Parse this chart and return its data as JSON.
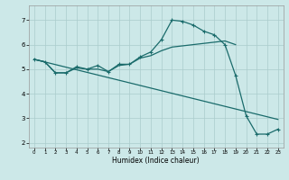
{
  "xlabel": "Humidex (Indice chaleur)",
  "bg_color": "#cce8e8",
  "grid_color": "#aacccc",
  "line_color": "#1a6b6b",
  "xlim": [
    -0.5,
    23.5
  ],
  "ylim": [
    1.8,
    7.6
  ],
  "yticks": [
    2,
    3,
    4,
    5,
    6,
    7
  ],
  "xticks": [
    0,
    1,
    2,
    3,
    4,
    5,
    6,
    7,
    8,
    9,
    10,
    11,
    12,
    13,
    14,
    15,
    16,
    17,
    18,
    19,
    20,
    21,
    22,
    23
  ],
  "line1_x": [
    0,
    1,
    2,
    3,
    4,
    5,
    6,
    7,
    8,
    9,
    10,
    11,
    12,
    13,
    14,
    15,
    16,
    17,
    18,
    19
  ],
  "line1_y": [
    5.4,
    5.3,
    4.85,
    4.85,
    5.05,
    5.0,
    5.0,
    4.9,
    5.15,
    5.2,
    5.45,
    5.55,
    5.75,
    5.9,
    5.95,
    6.0,
    6.05,
    6.1,
    6.15,
    6.0
  ],
  "line2_x": [
    0,
    1,
    2,
    3,
    4,
    5,
    6,
    7,
    8,
    9,
    10,
    11,
    12,
    13,
    14,
    15,
    16,
    17,
    18,
    19,
    20,
    21,
    22,
    23
  ],
  "line2_y": [
    5.4,
    5.3,
    4.85,
    4.85,
    5.1,
    5.0,
    5.15,
    4.9,
    5.2,
    5.2,
    5.5,
    5.7,
    6.2,
    7.0,
    6.95,
    6.8,
    6.55,
    6.4,
    6.0,
    4.75,
    3.1,
    2.35,
    2.35,
    2.55
  ],
  "line3_x": [
    0,
    23
  ],
  "line3_y": [
    5.4,
    2.95
  ]
}
